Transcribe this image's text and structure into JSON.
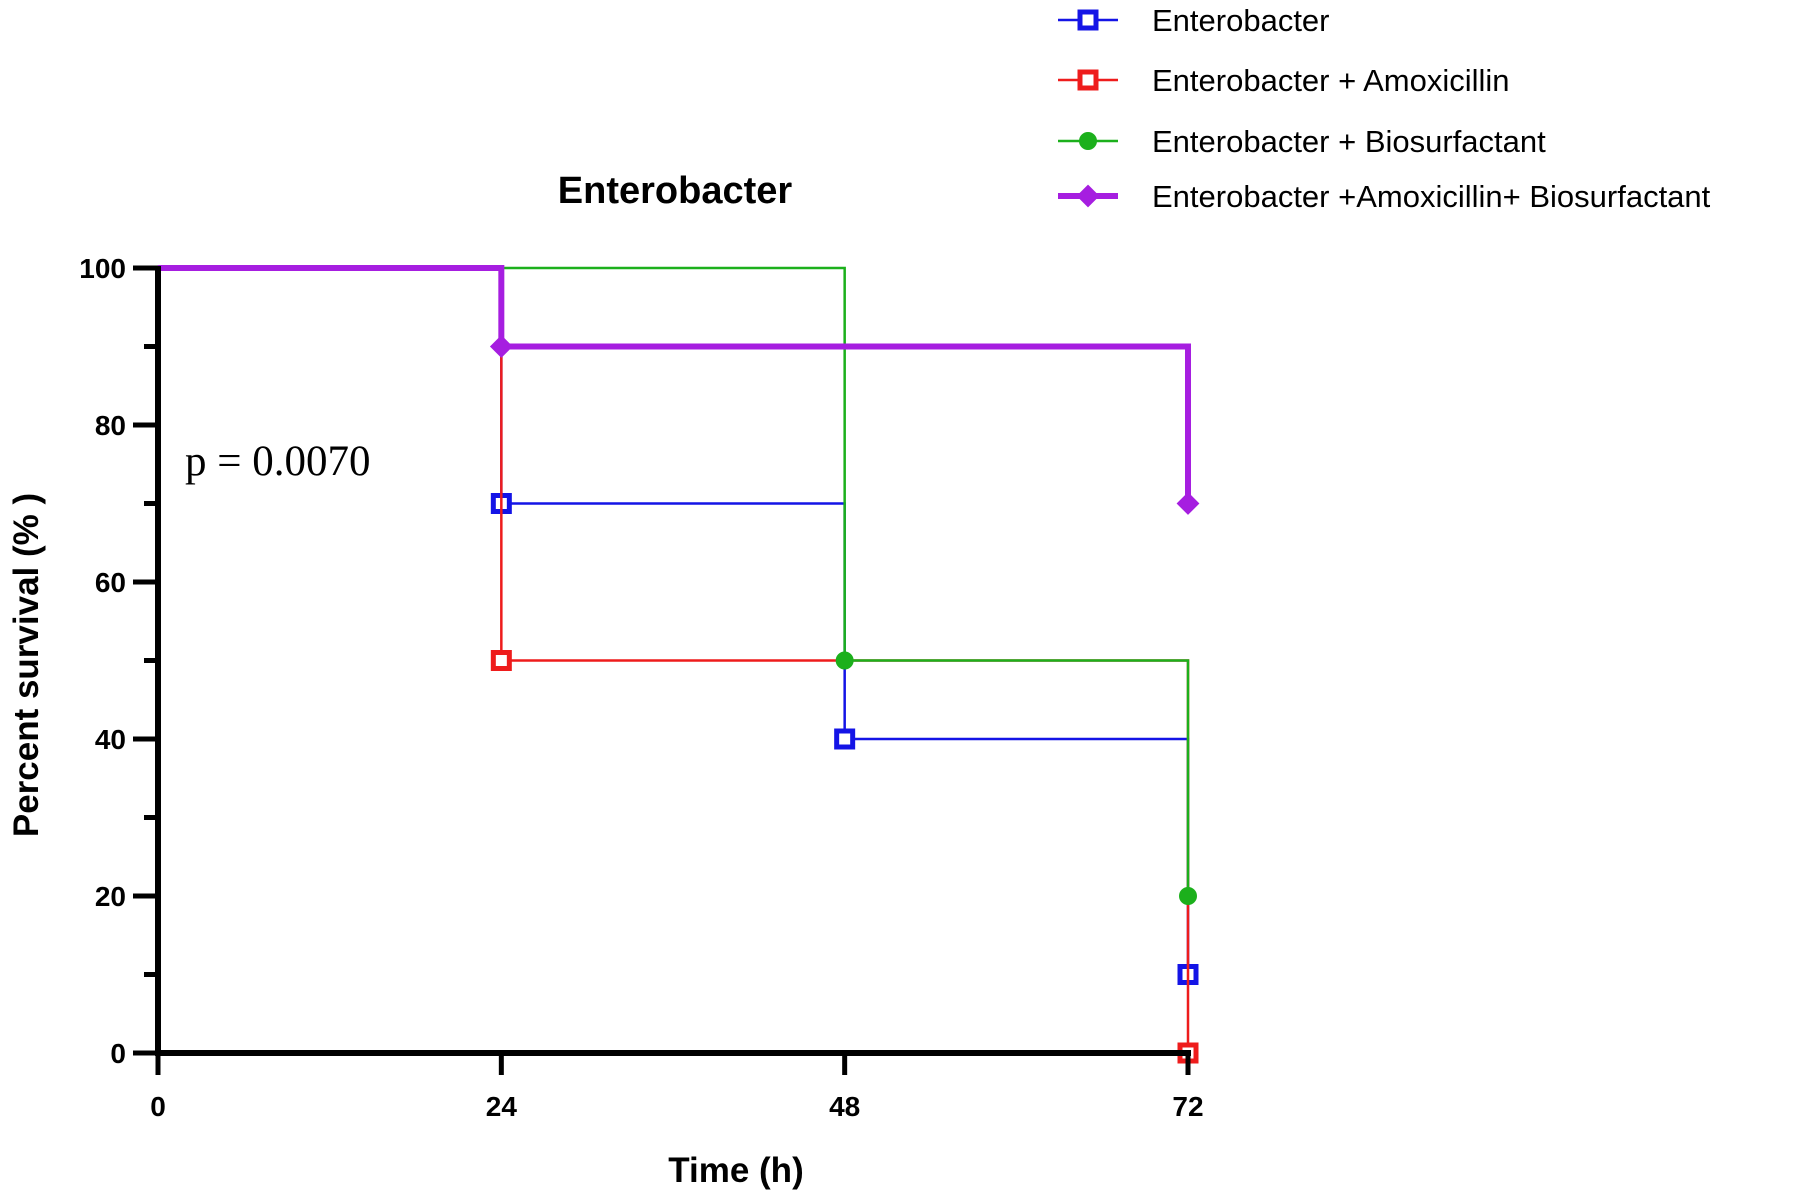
{
  "chart_data": {
    "type": "line",
    "subtype": "survival-step",
    "title": "Enterobacter",
    "xlabel": "Time (h)",
    "ylabel": "Percent survival (% )",
    "xlim": [
      0,
      72
    ],
    "ylim": [
      0,
      100
    ],
    "x_ticks": [
      "0",
      "24",
      "48",
      "72"
    ],
    "y_ticks": [
      "0",
      "20",
      "40",
      "60",
      "80",
      "100"
    ],
    "legend_position": "top-right",
    "annotation": "p = 0.0070",
    "grid": false,
    "series": [
      {
        "name": "Enterobacter",
        "color": "#1414e6",
        "marker": "square",
        "line_width": "thin",
        "points": [
          [
            0,
            100
          ],
          [
            24,
            70
          ],
          [
            48,
            40
          ],
          [
            72,
            10
          ]
        ],
        "marked": [
          [
            24,
            70
          ],
          [
            48,
            40
          ],
          [
            72,
            10
          ]
        ]
      },
      {
        "name": "Enterobacter + Amoxicillin",
        "color": "#ee1c1c",
        "marker": "square",
        "line_width": "thin",
        "points": [
          [
            0,
            100
          ],
          [
            24,
            50
          ],
          [
            72,
            0
          ]
        ],
        "marked": [
          [
            24,
            50
          ],
          [
            72,
            0
          ]
        ]
      },
      {
        "name": "Enterobacter + Biosurfactant",
        "color": "#1cb01c",
        "marker": "circle",
        "line_width": "thin",
        "points": [
          [
            0,
            100
          ],
          [
            48,
            50
          ],
          [
            72,
            20
          ]
        ],
        "marked": [
          [
            48,
            50
          ],
          [
            72,
            20
          ]
        ]
      },
      {
        "name": "Enterobacter +Amoxicillin+ Biosurfactant",
        "color": "#a61ee0",
        "marker": "diamond",
        "line_width": "thick",
        "points": [
          [
            0,
            100
          ],
          [
            24,
            90
          ],
          [
            72,
            70
          ]
        ],
        "marked": [
          [
            24,
            90
          ],
          [
            72,
            70
          ]
        ]
      }
    ]
  }
}
